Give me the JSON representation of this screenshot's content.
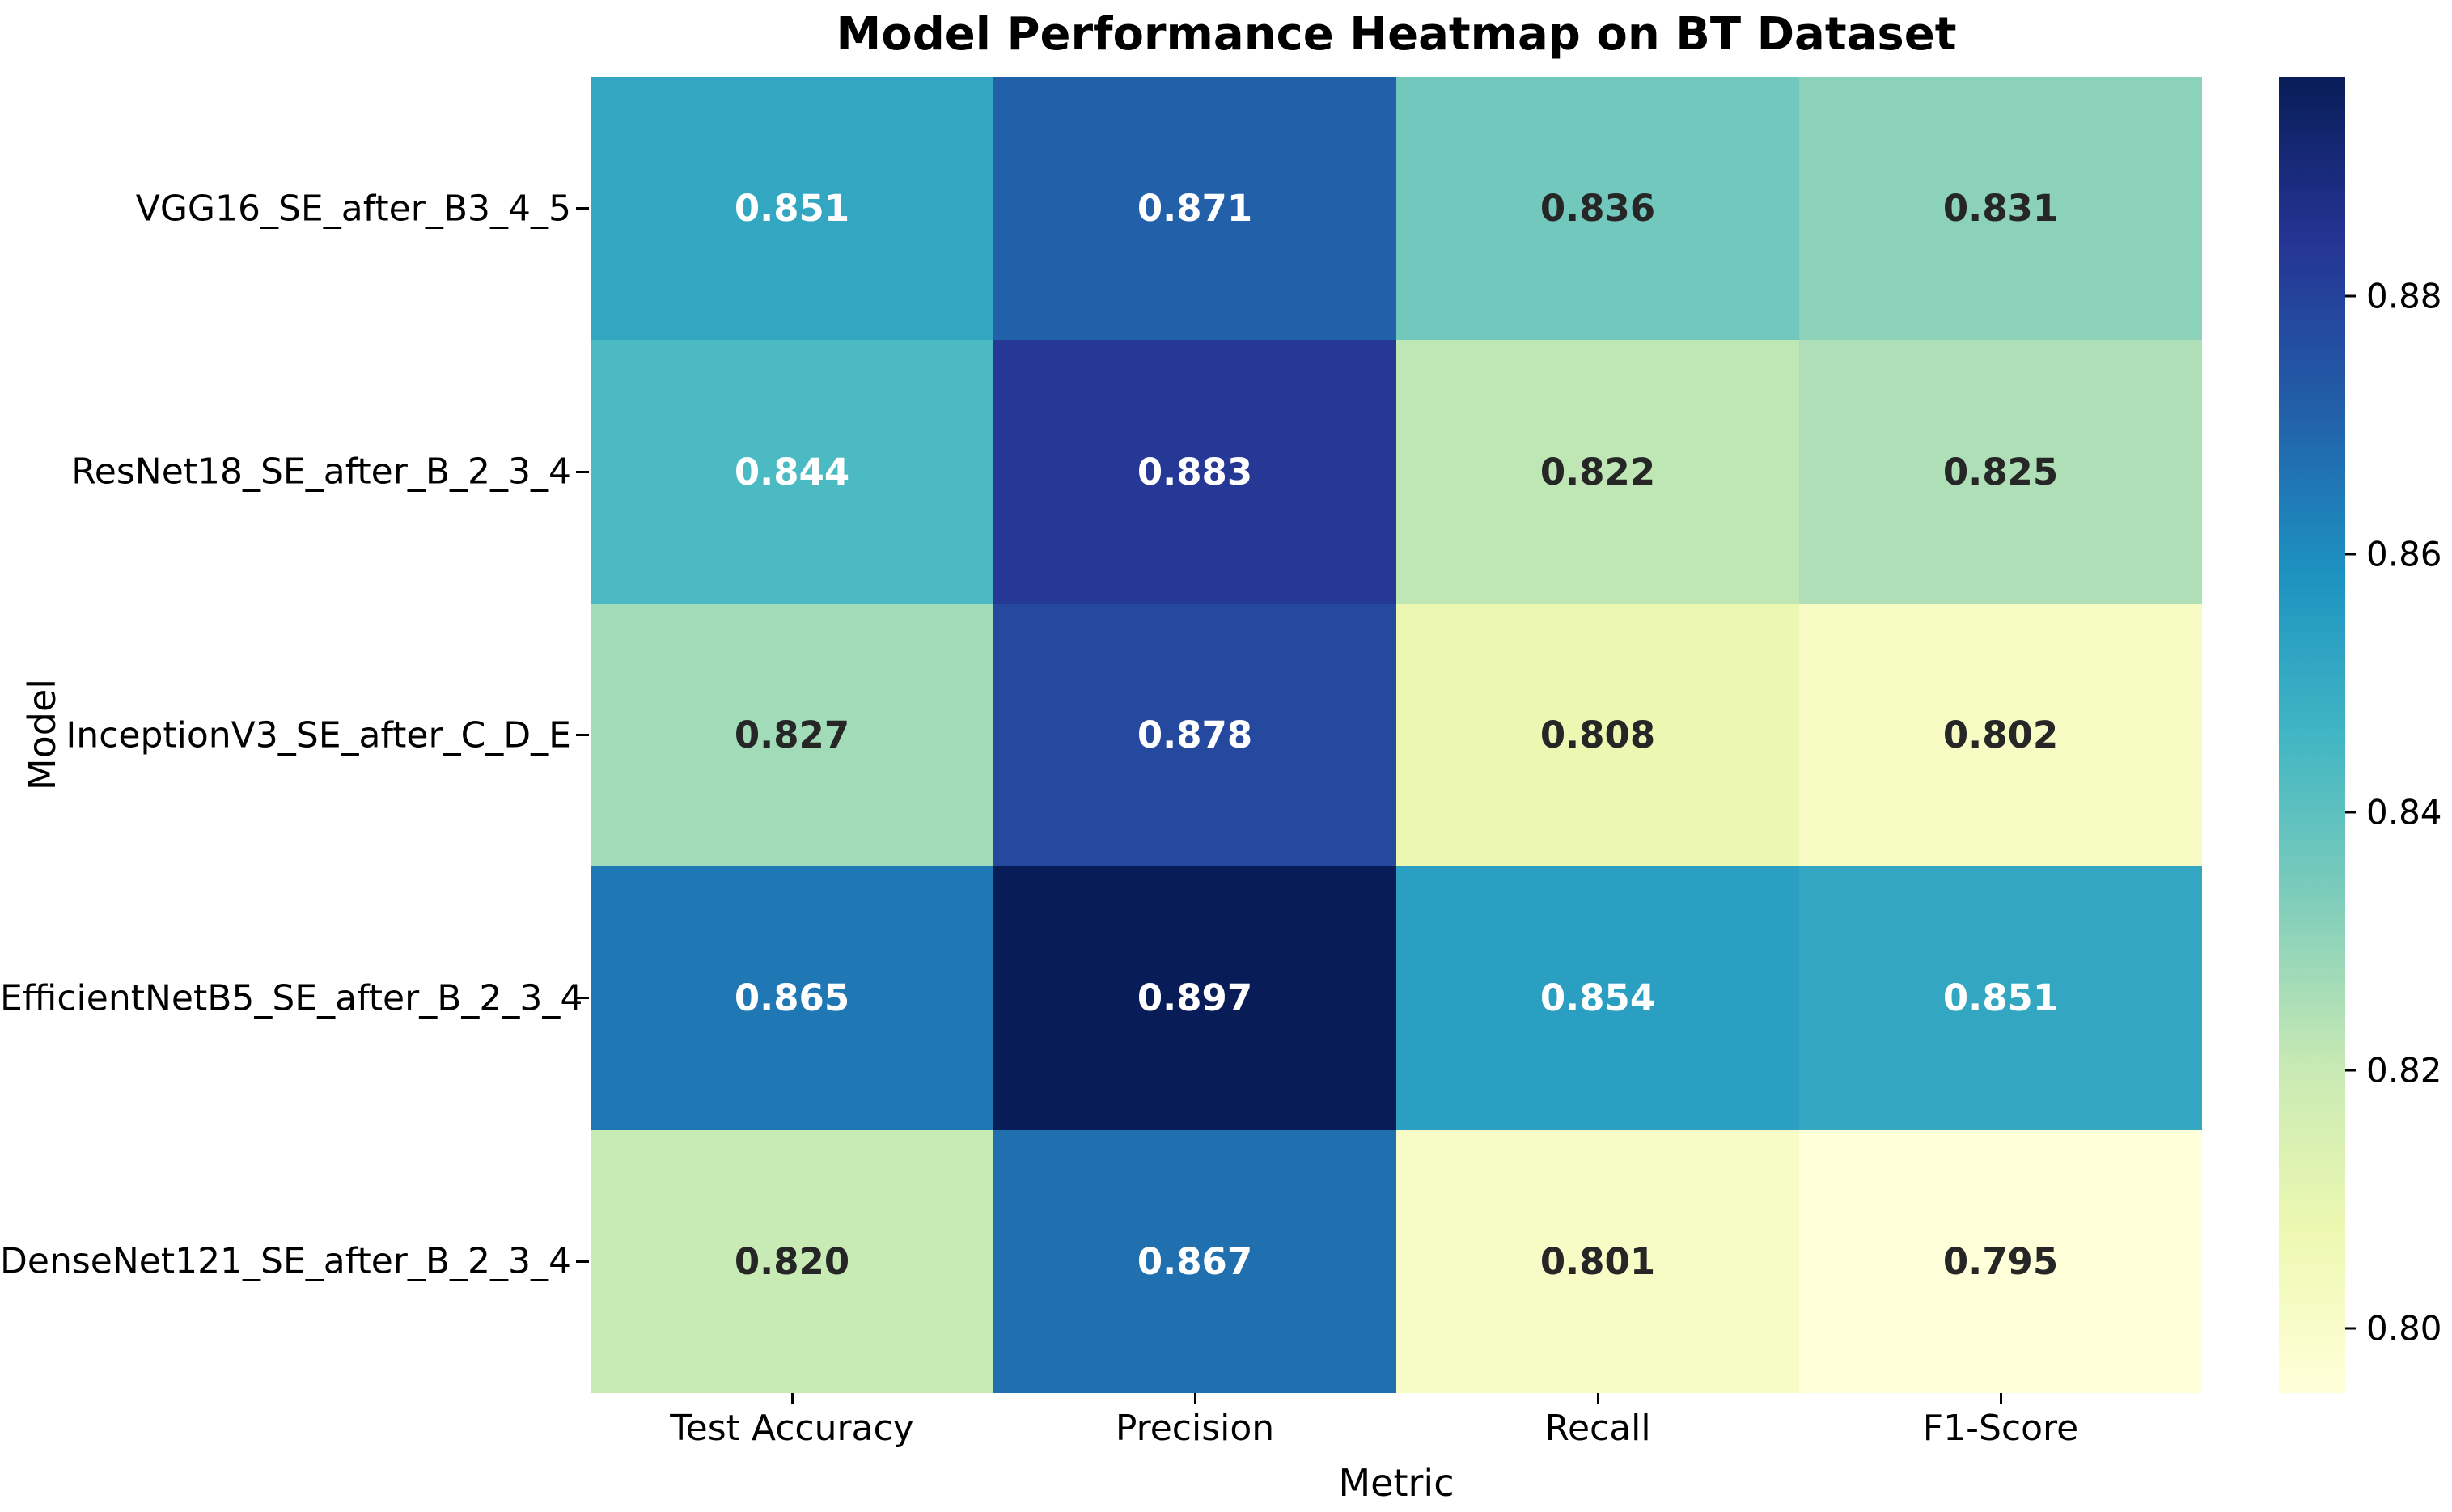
{
  "figure": {
    "background_color": "#ffffff"
  },
  "chart_data": {
    "type": "heatmap",
    "title": "Model Performance Heatmap on BT Dataset",
    "xlabel": "Metric",
    "ylabel": "Model",
    "columns": [
      "Test Accuracy",
      "Precision",
      "Recall",
      "F1-Score"
    ],
    "rows": [
      "VGG16_SE_after_B3_4_5",
      "ResNet18_SE_after_B_2_3_4",
      "InceptionV3_SE_after_C_D_E",
      "EfficientNetB5_SE_after_B_2_3_4",
      "DenseNet121_SE_after_B_2_3_4"
    ],
    "values": [
      [
        0.851,
        0.871,
        0.836,
        0.831
      ],
      [
        0.844,
        0.883,
        0.822,
        0.825
      ],
      [
        0.827,
        0.878,
        0.808,
        0.802
      ],
      [
        0.865,
        0.897,
        0.854,
        0.851
      ],
      [
        0.82,
        0.867,
        0.801,
        0.795
      ]
    ],
    "value_decimals": 3,
    "vmin": 0.795,
    "vmax": 0.897,
    "grid_lines": false,
    "legend_position": "right-colorbar",
    "colormap": {
      "name": "YlGnBu",
      "anchors": [
        {
          "t": 0.0,
          "hex": "#ffffd9"
        },
        {
          "t": 0.125,
          "hex": "#edf8b1"
        },
        {
          "t": 0.25,
          "hex": "#c7e9b4"
        },
        {
          "t": 0.375,
          "hex": "#7fcdbb"
        },
        {
          "t": 0.5,
          "hex": "#41b6c4"
        },
        {
          "t": 0.625,
          "hex": "#1d91c0"
        },
        {
          "t": 0.75,
          "hex": "#225ea8"
        },
        {
          "t": 0.875,
          "hex": "#253494"
        },
        {
          "t": 1.0,
          "hex": "#081d58"
        }
      ]
    },
    "annotation_colors": {
      "on_dark": "#ffffff",
      "on_light": "#262626",
      "luminance_threshold": 0.408
    },
    "colorbar_ticks": [
      {
        "value": 0.88,
        "label": "0.88"
      },
      {
        "value": 0.86,
        "label": "0.86"
      },
      {
        "value": 0.84,
        "label": "0.84"
      },
      {
        "value": 0.82,
        "label": "0.82"
      },
      {
        "value": 0.8,
        "label": "0.80"
      }
    ]
  }
}
